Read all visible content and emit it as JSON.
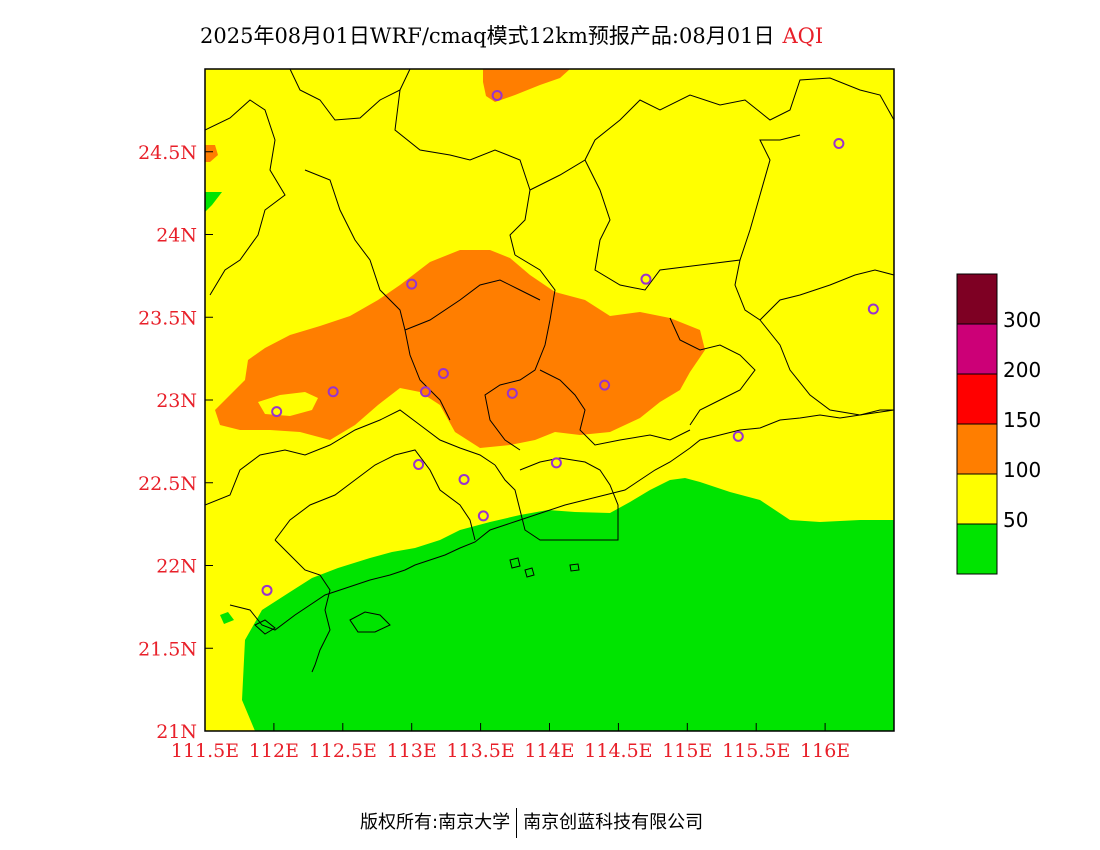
{
  "title": {
    "main": "2025年08月01日WRF/cmaq模式12km预报产品:08月01日",
    "variable": "AQI"
  },
  "axes": {
    "lon_range": [
      111.5,
      116.5
    ],
    "lat_range": [
      21.0,
      25.0
    ],
    "lon_ticks": [
      {
        "value": 111.5,
        "label": "111.5E"
      },
      {
        "value": 112.0,
        "label": "112E"
      },
      {
        "value": 112.5,
        "label": "112.5E"
      },
      {
        "value": 113.0,
        "label": "113E"
      },
      {
        "value": 113.5,
        "label": "113.5E"
      },
      {
        "value": 114.0,
        "label": "114E"
      },
      {
        "value": 114.5,
        "label": "114.5E"
      },
      {
        "value": 115.0,
        "label": "115E"
      },
      {
        "value": 115.5,
        "label": "115.5E"
      },
      {
        "value": 116.0,
        "label": "116E"
      }
    ],
    "lat_ticks": [
      {
        "value": 21.0,
        "label": "21N"
      },
      {
        "value": 21.5,
        "label": "21.5N"
      },
      {
        "value": 22.0,
        "label": "22N"
      },
      {
        "value": 22.5,
        "label": "22.5N"
      },
      {
        "value": 23.0,
        "label": "23N"
      },
      {
        "value": 23.5,
        "label": "23.5N"
      },
      {
        "value": 24.0,
        "label": "24N"
      },
      {
        "value": 24.5,
        "label": "24.5N"
      }
    ]
  },
  "colors": {
    "good": "#00e400",
    "moderate": "#ffff00",
    "usg": "#ff7e00",
    "unhealthy": "#ff0000",
    "very_unhealthy": "#cc0077",
    "hazardous": "#7e0023",
    "city_marker": "#9933cc",
    "boundary": "#000000"
  },
  "legend": {
    "categories": [
      {
        "color": "#7e0023"
      },
      {
        "color": "#cc0077"
      },
      {
        "color": "#ff0000"
      },
      {
        "color": "#ff7e00"
      },
      {
        "color": "#ffff00"
      },
      {
        "color": "#00e400"
      }
    ],
    "labels": [
      "300",
      "200",
      "150",
      "100",
      "50"
    ]
  },
  "cities": [
    {
      "lon": 113.62,
      "lat": 24.84
    },
    {
      "lon": 116.1,
      "lat": 24.55
    },
    {
      "lon": 114.7,
      "lat": 23.73
    },
    {
      "lon": 116.35,
      "lat": 23.55
    },
    {
      "lon": 113.0,
      "lat": 23.7
    },
    {
      "lon": 112.43,
      "lat": 23.05
    },
    {
      "lon": 113.23,
      "lat": 23.16
    },
    {
      "lon": 113.1,
      "lat": 23.05
    },
    {
      "lon": 113.73,
      "lat": 23.04
    },
    {
      "lon": 114.4,
      "lat": 23.09
    },
    {
      "lon": 112.02,
      "lat": 22.93
    },
    {
      "lon": 115.37,
      "lat": 22.78
    },
    {
      "lon": 113.05,
      "lat": 22.61
    },
    {
      "lon": 113.38,
      "lat": 22.52
    },
    {
      "lon": 114.05,
      "lat": 22.62
    },
    {
      "lon": 113.52,
      "lat": 22.3
    },
    {
      "lon": 111.95,
      "lat": 21.85
    }
  ],
  "footer": {
    "left": "版权所有:南京大学",
    "right": "南京创蓝科技有限公司"
  }
}
